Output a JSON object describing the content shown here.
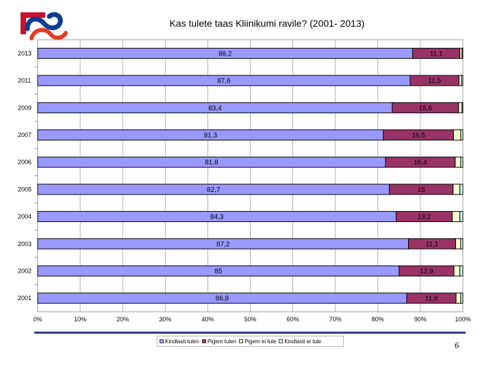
{
  "chart_data": {
    "type": "bar",
    "orientation": "horizontal",
    "stacked": "percent",
    "title": "Kas tulete taas Kliinikumi ravile? (2001- 2013)",
    "categories": [
      "2013",
      "2011",
      "2009",
      "2007",
      "2006",
      "2005",
      "2004",
      "2003",
      "2002",
      "2001"
    ],
    "series": [
      {
        "name": "Kindlasti tulen",
        "color": "#9999ff",
        "values": [
          88.2,
          87.6,
          83.4,
          81.3,
          81.8,
          82.7,
          84.3,
          87.2,
          85,
          86.8
        ],
        "labels": [
          "88,2",
          "87,6",
          "83,4",
          "81,3",
          "81,8",
          "82,7",
          "84,3",
          "87,2",
          "85",
          "86,8"
        ]
      },
      {
        "name": "Pigem tulen",
        "color": "#993366",
        "values": [
          11.1,
          11.5,
          15.6,
          16.5,
          16.4,
          15,
          13.2,
          11.1,
          12.9,
          11.6
        ],
        "labels": [
          "11,1",
          "11,5",
          "15,6",
          "16,5",
          "16,4",
          "15",
          "13,2",
          "11,1",
          "12,9",
          "11,6"
        ]
      },
      {
        "name": "Pigem ei tule",
        "color": "#ffffcc",
        "values": [
          0.5,
          0.6,
          0.8,
          1.7,
          1.3,
          1.6,
          1.8,
          1.2,
          1.4,
          1.1
        ]
      },
      {
        "name": "Kindlasti ei tule",
        "color": "#ccffff",
        "values": [
          0.2,
          0.3,
          0.2,
          0.5,
          0.5,
          0.7,
          0.7,
          0.5,
          0.7,
          0.5
        ]
      }
    ],
    "xlim": [
      0,
      100
    ],
    "xticks": [
      "0%",
      "10%",
      "20%",
      "30%",
      "40%",
      "50%",
      "60%",
      "70%",
      "80%",
      "90%",
      "100%"
    ],
    "grid": true,
    "legend_position": "bottom"
  },
  "page_number": "6"
}
